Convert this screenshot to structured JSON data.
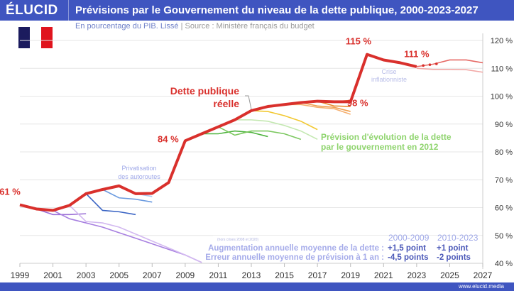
{
  "header": {
    "logo": "ÉLUCID",
    "title": "Prévisions par le Gouvernement du niveau de la dette publique, 2000-2023-2027"
  },
  "subtitle": {
    "unit": "En pourcentage du PIB. Lissé",
    "separator": " | ",
    "source": "Source : Ministère français du budget"
  },
  "flag_colors": [
    "#1b1b5e",
    "#ffffff",
    "#e0141e"
  ],
  "footer": {
    "url": "www.elucid.media"
  },
  "chart_data": {
    "type": "line",
    "title": "Prévisions par le Gouvernement du niveau de la dette publique, 2000-2023-2027",
    "xlim": [
      1999,
      2027
    ],
    "ylim": [
      40,
      120
    ],
    "x_ticks": [
      "1999",
      "2001",
      "2003",
      "2005",
      "2007",
      "2009",
      "2011",
      "2013",
      "2015",
      "2017",
      "2019",
      "2021",
      "2023",
      "2025",
      "2027"
    ],
    "y_ticks": [
      "40 %",
      "50 %",
      "60 %",
      "70 %",
      "80 %",
      "90 %",
      "100 %",
      "110 %",
      "120 %"
    ],
    "grid": true,
    "actual": {
      "name": "Dette publique réelle",
      "color": "#d9302c",
      "points": [
        [
          1999,
          61
        ],
        [
          2000,
          59.5
        ],
        [
          2001,
          59
        ],
        [
          2002,
          60.8
        ],
        [
          2003,
          65
        ],
        [
          2004,
          66.5
        ],
        [
          2005,
          67.8
        ],
        [
          2006,
          65
        ],
        [
          2007,
          65.1
        ],
        [
          2008,
          69
        ],
        [
          2009,
          84
        ],
        [
          2010,
          86.5
        ],
        [
          2011,
          89
        ],
        [
          2012,
          91.5
        ],
        [
          2013,
          94.8
        ],
        [
          2014,
          96.3
        ],
        [
          2015,
          97
        ],
        [
          2016,
          97.7
        ],
        [
          2017,
          98.2
        ],
        [
          2018,
          98
        ],
        [
          2019,
          98
        ],
        [
          2020,
          115
        ],
        [
          2021,
          113
        ],
        [
          2022,
          112
        ],
        [
          2023,
          110.6
        ]
      ]
    },
    "forecasts": [
      {
        "color": "#9b6fd6",
        "points": [
          [
            2000,
            59.5
          ],
          [
            2001,
            57.5
          ],
          [
            2002,
            57.5
          ],
          [
            2003,
            57.8
          ]
        ]
      },
      {
        "color": "#a77fe0",
        "points": [
          [
            2001,
            59
          ],
          [
            2002,
            56
          ],
          [
            2003,
            54.5
          ],
          [
            2004,
            53
          ],
          [
            2005,
            51
          ],
          [
            2006,
            49
          ],
          [
            2007,
            47
          ],
          [
            2008,
            45
          ],
          [
            2009,
            43
          ],
          [
            2010,
            40.3
          ]
        ]
      },
      {
        "color": "#d2b8f0",
        "points": [
          [
            2002,
            60.8
          ],
          [
            2003,
            55
          ],
          [
            2004,
            54.5
          ],
          [
            2005,
            53
          ],
          [
            2006,
            50.5
          ],
          [
            2007,
            48
          ],
          [
            2008,
            45.5
          ],
          [
            2009,
            43
          ],
          [
            2010,
            40.3
          ]
        ]
      },
      {
        "color": "#3a64c4",
        "points": [
          [
            2003,
            65
          ],
          [
            2004,
            59
          ],
          [
            2005,
            58.5
          ],
          [
            2006,
            57.5
          ]
        ]
      },
      {
        "color": "#6b9be0",
        "points": [
          [
            2004,
            66.5
          ],
          [
            2005,
            63.5
          ],
          [
            2006,
            63
          ],
          [
            2007,
            62
          ]
        ]
      },
      {
        "color": "#a9c8f0",
        "points": [
          [
            2006,
            65
          ],
          [
            2007,
            64
          ]
        ]
      },
      {
        "color": "#4db33d",
        "points": [
          [
            2010,
            86.5
          ],
          [
            2011,
            86.5
          ],
          [
            2012,
            87.5
          ],
          [
            2013,
            87
          ],
          [
            2014,
            85.5
          ]
        ]
      },
      {
        "color": "#7cc860",
        "points": [
          [
            2011,
            89
          ],
          [
            2012,
            86
          ],
          [
            2013,
            87.5
          ],
          [
            2014,
            87.5
          ],
          [
            2015,
            86.5
          ],
          [
            2016,
            84.5
          ]
        ]
      },
      {
        "color": "#c3e8b0",
        "points": [
          [
            2012,
            91.5
          ],
          [
            2013,
            91.5
          ],
          [
            2014,
            91
          ],
          [
            2015,
            89.5
          ],
          [
            2016,
            87.5
          ],
          [
            2017,
            84.5
          ]
        ]
      },
      {
        "color": "#f2c830",
        "points": [
          [
            2013,
            94.8
          ],
          [
            2014,
            94.5
          ],
          [
            2015,
            93
          ],
          [
            2016,
            91
          ],
          [
            2017,
            88
          ]
        ]
      },
      {
        "color": "#f5b070",
        "points": [
          [
            2015,
            97
          ],
          [
            2016,
            97
          ],
          [
            2017,
            96
          ],
          [
            2018,
            95.5
          ],
          [
            2019,
            93.5
          ]
        ]
      },
      {
        "color": "#f0a050",
        "points": [
          [
            2016,
            97.7
          ],
          [
            2017,
            96.5
          ],
          [
            2018,
            96
          ],
          [
            2019,
            94.5
          ]
        ]
      },
      {
        "color": "#e8882a",
        "points": [
          [
            2017,
            98.2
          ],
          [
            2018,
            96.5
          ],
          [
            2019,
            96.3
          ]
        ]
      },
      {
        "color": "#e07a20",
        "points": [
          [
            2018,
            98
          ],
          [
            2019,
            98.5
          ]
        ]
      },
      {
        "color": "#e66a66",
        "points": [
          [
            2023,
            110.6
          ],
          [
            2024,
            111.5
          ],
          [
            2025,
            113
          ],
          [
            2026,
            113
          ],
          [
            2027,
            112
          ]
        ]
      },
      {
        "color": "#f2a8a6",
        "points": [
          [
            2023,
            110
          ],
          [
            2024,
            109.6
          ],
          [
            2025,
            109.6
          ],
          [
            2026,
            109.5
          ],
          [
            2027,
            108.6
          ]
        ]
      }
    ],
    "data_labels": [
      {
        "text": "61 %",
        "x": 1999,
        "y": 61
      },
      {
        "text": "84 %",
        "x": 2009,
        "y": 84
      },
      {
        "text": "98 %",
        "x": 2019,
        "y": 98
      },
      {
        "text": "115 %",
        "x": 2020,
        "y": 115
      },
      {
        "text": "111 %",
        "x": 2023,
        "y": 111
      }
    ],
    "annotations": {
      "actual_label": [
        "Dette publique",
        "réelle"
      ],
      "forecast_label": [
        "Prévision d'évolution de la dette",
        "par le gouvernement en 2012"
      ],
      "privatisation": [
        "Privatisation",
        "des autoroutes"
      ],
      "crise": [
        "Crise",
        "inflationniste"
      ]
    },
    "table": {
      "note": "(hors crises 2008 et 2020)",
      "columns": [
        "2000-2009",
        "2010-2023"
      ],
      "rows": [
        {
          "label": "Augmentation annuelle moyenne de la dette :",
          "values": [
            "+1,5 point",
            "+1 point"
          ]
        },
        {
          "label": "Erreur annuelle moyenne de prévision à 1 an :",
          "values": [
            "-4,5 points",
            "-2 points"
          ]
        }
      ]
    }
  }
}
